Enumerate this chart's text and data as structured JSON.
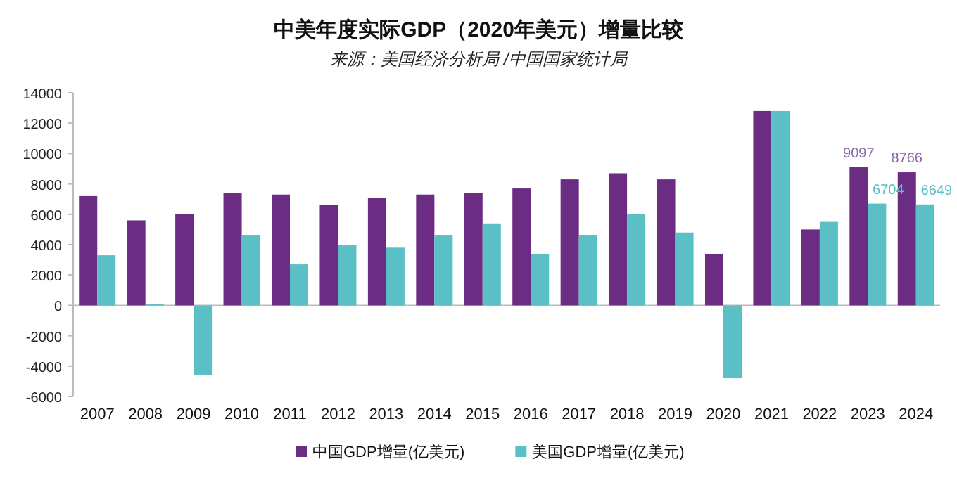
{
  "chart_data": {
    "type": "bar",
    "title": "中美年度实际GDP（2020年美元）增量比较",
    "subtitle": "来源：美国经济分析局 /中国国家统计局",
    "categories": [
      "2007",
      "2008",
      "2009",
      "2010",
      "2011",
      "2012",
      "2013",
      "2014",
      "2015",
      "2016",
      "2017",
      "2018",
      "2019",
      "2020",
      "2021",
      "2022",
      "2023",
      "2024"
    ],
    "series": [
      {
        "name": "中国GDP增量(亿美元)",
        "color": "#6b2d84",
        "values": [
          7200,
          5600,
          6000,
          7400,
          7300,
          6600,
          7100,
          7300,
          7400,
          7700,
          8300,
          8700,
          8300,
          3400,
          12800,
          5000,
          9097,
          8766
        ],
        "value_labels": [
          null,
          null,
          null,
          null,
          null,
          null,
          null,
          null,
          null,
          null,
          null,
          null,
          null,
          null,
          null,
          null,
          "9097",
          "8766"
        ]
      },
      {
        "name": "美国GDP增量(亿美元)",
        "color": "#5bbfc6",
        "values": [
          3300,
          100,
          -4600,
          4600,
          2700,
          4000,
          3800,
          4600,
          5400,
          3400,
          4600,
          6000,
          4800,
          -4800,
          12800,
          5500,
          6704,
          6649
        ],
        "value_labels": [
          null,
          null,
          null,
          null,
          null,
          null,
          null,
          null,
          null,
          null,
          null,
          null,
          null,
          null,
          null,
          null,
          "6704",
          "6649"
        ]
      }
    ],
    "ylim": [
      -6000,
      14000
    ],
    "yticks": [
      -6000,
      -4000,
      -2000,
      0,
      2000,
      4000,
      6000,
      8000,
      10000,
      12000,
      14000
    ],
    "legend": "bottom"
  }
}
